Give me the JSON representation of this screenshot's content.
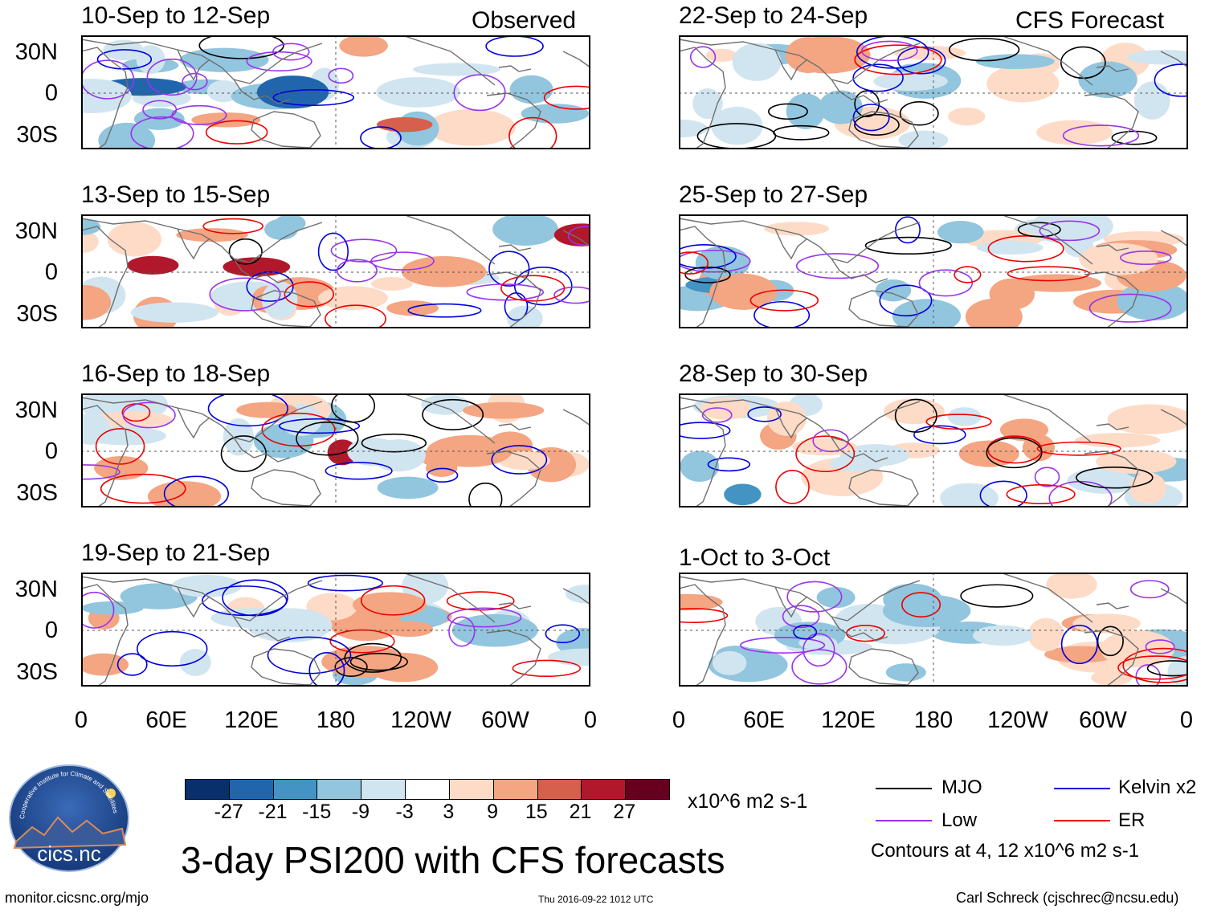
{
  "figure_title": "3-day PSI200 with CFS forecasts",
  "column_tags": {
    "observed": "Observed",
    "forecast": "CFS Forecast"
  },
  "panels": {
    "observed": [
      {
        "period": "10-Sep to 12-Sep"
      },
      {
        "period": "13-Sep to 15-Sep"
      },
      {
        "period": "16-Sep to 18-Sep"
      },
      {
        "period": "19-Sep to 21-Sep"
      }
    ],
    "forecast": [
      {
        "period": "22-Sep to 24-Sep"
      },
      {
        "period": "25-Sep to 27-Sep"
      },
      {
        "period": "28-Sep to 30-Sep"
      },
      {
        "period": "1-Oct to 3-Oct"
      }
    ]
  },
  "axes": {
    "lat_ticks": [
      "30N",
      "0",
      "30S"
    ],
    "lon_ticks": [
      "0",
      "60E",
      "120E",
      "180",
      "120W",
      "60W",
      "0"
    ]
  },
  "colorbar": {
    "tick_labels": [
      "-27",
      "-21",
      "-15",
      "-9",
      "-3",
      "3",
      "9",
      "15",
      "21",
      "27"
    ],
    "units": "x10^6 m2 s-1",
    "colors": [
      "#08306b",
      "#2166ac",
      "#4393c3",
      "#92c5de",
      "#d1e5f0",
      "#ffffff",
      "#fddbc7",
      "#f4a582",
      "#d6604d",
      "#b2182b",
      "#67001f"
    ]
  },
  "legend": {
    "items": [
      {
        "label": "MJO",
        "color": "#000000"
      },
      {
        "label": "Kelvin x2",
        "color": "#0000dd"
      },
      {
        "label": "Low",
        "color": "#9933ee"
      },
      {
        "label": "ER",
        "color": "#ee0000"
      }
    ],
    "contours_note": "Contours at 4, 12 x10^6 m2 s-1"
  },
  "logo": {
    "text": "cics.nc",
    "ring_text": "Cooperative Institute for Climate and Satellites"
  },
  "footer": {
    "url": "monitor.cicsnc.org/mjo",
    "timestamp": "Thu 2016-09-22 1012 UTC",
    "credit": "Carl Schreck (cjschrec@ncsu.edu)"
  }
}
